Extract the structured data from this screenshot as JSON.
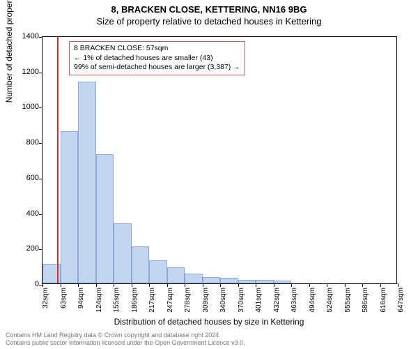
{
  "header": {
    "title": "8, BRACKEN CLOSE, KETTERING, NN16 9BG",
    "subtitle": "Size of property relative to detached houses in Kettering"
  },
  "chart": {
    "type": "histogram",
    "ylabel": "Number of detached properties",
    "xlabel": "Distribution of detached houses by size in Kettering",
    "ylim": [
      0,
      1400
    ],
    "ytick_step": 200,
    "yticks": [
      0,
      200,
      400,
      600,
      800,
      1000,
      1200,
      1400
    ],
    "xticks": [
      "32sqm",
      "63sqm",
      "94sqm",
      "124sqm",
      "155sqm",
      "186sqm",
      "217sqm",
      "247sqm",
      "278sqm",
      "309sqm",
      "340sqm",
      "370sqm",
      "401sqm",
      "432sqm",
      "463sqm",
      "494sqm",
      "524sqm",
      "555sqm",
      "586sqm",
      "616sqm",
      "647sqm"
    ],
    "values": [
      110,
      860,
      1140,
      730,
      340,
      210,
      130,
      90,
      55,
      35,
      30,
      20,
      18,
      15,
      0,
      0,
      0,
      0,
      0,
      0
    ],
    "bar_fill": "#c4d5ef",
    "bar_stroke": "#8aa7d9",
    "background_color": "#ffffff",
    "axis_color": "#000000",
    "marker_line_color": "#d03030",
    "marker_x_sqm": 57,
    "label_fontsize": 12,
    "tick_fontsize": 11
  },
  "infobox": {
    "line1": "8 BRACKEN CLOSE: 57sqm",
    "line2": "← 1% of detached houses are smaller (43)",
    "line3": "99% of semi-detached houses are larger (3,387) →",
    "border_color": "#c06060"
  },
  "footer": {
    "line1": "Contains HM Land Registry data © Crown copyright and database right 2024.",
    "line2": "Contains public sector information licensed under the Open Government Licence v3.0."
  }
}
